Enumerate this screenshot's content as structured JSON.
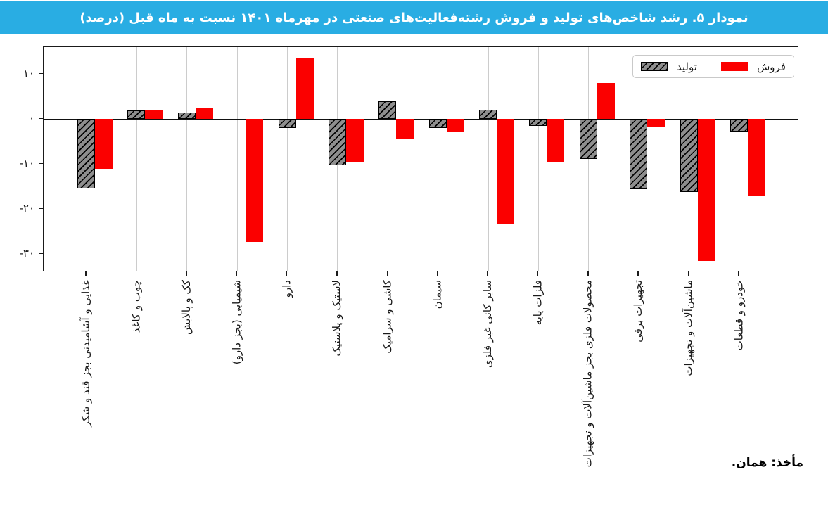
{
  "title": "نمودار ۵. رشد شاخص‌های تولید و فروش رشته‌فعالیت‌های صنعتی در مهرماه ۱۴۰۱ نسبت به ماه قبل (درصد)",
  "source_note": "مأخذ: همان.",
  "legend": {
    "production_label": "تولید",
    "sales_label": "فروش"
  },
  "colors": {
    "title_bar_bg": "#29ADE3",
    "title_text": "#FFFFFF",
    "production_fill": "#8E8E8E",
    "production_hatch": "#000000",
    "sales_fill": "#FB0000",
    "gridline": "#CCCCCC",
    "axis": "#1A1A1A"
  },
  "chart_data": {
    "type": "bar",
    "title": "نمودار ۵. رشد شاخص‌های تولید و فروش رشته‌فعالیت‌های صنعتی در مهرماه ۱۴۰۱ نسبت به ماه قبل (درصد)",
    "categories": [
      "غذایی و آشامیدنی بجز قند و شکر",
      "چوب و کاغذ",
      "کک و پالایش",
      "شیمیایی (بجز دارو)",
      "دارو",
      "لاستیک و پلاستیک",
      "کاشی و سرامیک",
      "سیمان",
      "سایر کانی غیر فلزی",
      "فلزات پایه",
      "محصولات فلزی بجز ماشین‌آلات و تجهیزات",
      "تجهیزات برقی",
      "ماشین‌آلات و تجهیزات",
      "خودرو و قطعات"
    ],
    "series": [
      {
        "name": "تولید",
        "values": [
          -15.4,
          2.0,
          1.5,
          0.0,
          -1.9,
          -10.3,
          3.9,
          -1.9,
          2.1,
          -1.5,
          -8.9,
          -15.6,
          -16.2,
          -2.7
        ]
      },
      {
        "name": "فروش",
        "values": [
          -11.0,
          1.9,
          2.4,
          -27.3,
          13.6,
          -9.7,
          -4.5,
          -2.7,
          -23.3,
          -9.6,
          8.1,
          -1.8,
          -31.5,
          -17.0
        ]
      }
    ],
    "ylim": [
      -34,
      16
    ],
    "yticks": [
      10,
      0,
      -10,
      -20,
      -30
    ],
    "ytick_labels": [
      "۱۰",
      "۰",
      "-۱۰",
      "-۲۰",
      "-۳۰"
    ],
    "grid": "vertical-only",
    "legend_position": "top-right"
  }
}
